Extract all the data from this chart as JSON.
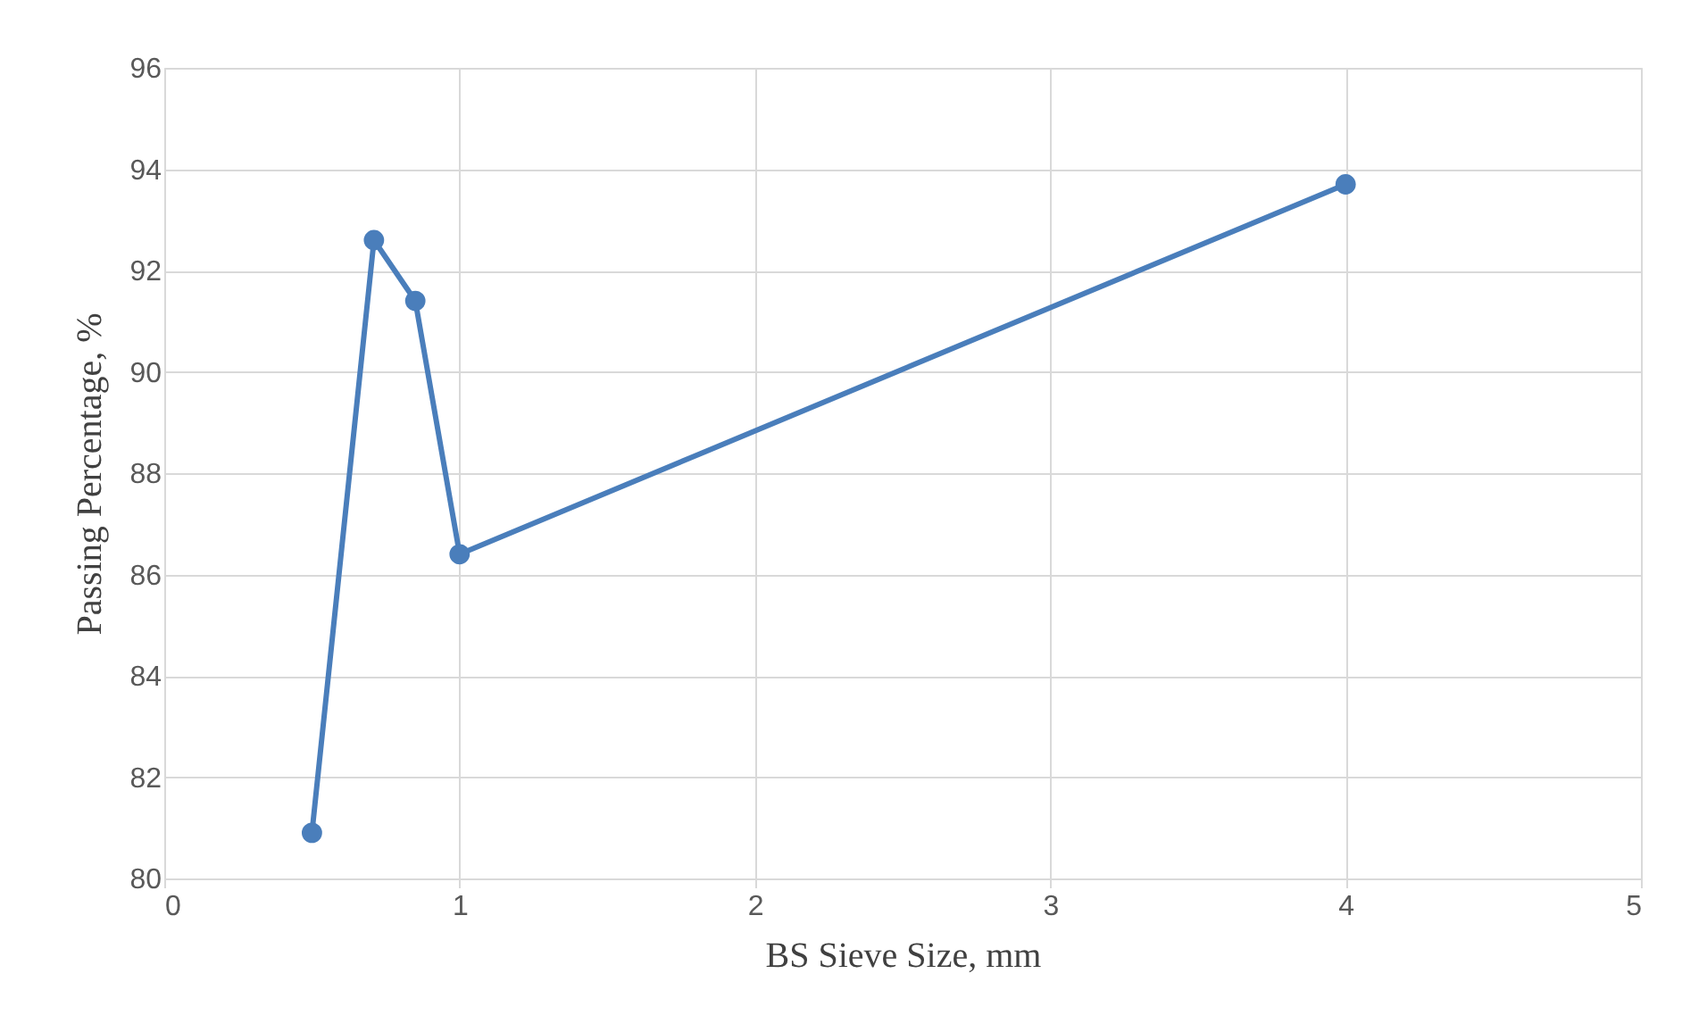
{
  "chart_data": {
    "type": "line",
    "xlabel": "BS Sieve Size, mm",
    "ylabel": "Passing Percentage, %",
    "x": [
      0.5,
      0.71,
      0.85,
      1.0,
      4.0
    ],
    "series": [
      {
        "color": "#4a7ebb",
        "values": [
          80.9,
          92.6,
          91.4,
          86.4,
          93.7
        ]
      }
    ],
    "xlim": [
      0,
      5
    ],
    "xticks": [
      0,
      1,
      2,
      3,
      4,
      5
    ],
    "ylim": [
      80,
      96
    ],
    "yticks": [
      80,
      82,
      84,
      86,
      88,
      90,
      92,
      94,
      96
    ],
    "grid": true,
    "marker": "circle",
    "line_style": "solid"
  }
}
